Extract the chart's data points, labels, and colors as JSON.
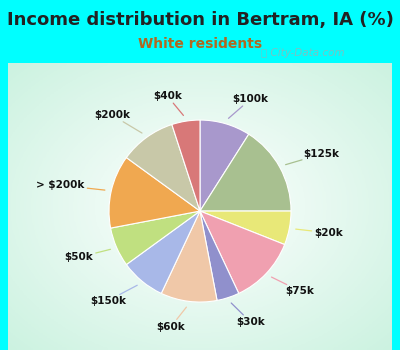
{
  "title": "Income distribution in Bertram, IA (%)",
  "subtitle": "White residents",
  "watermark": "Ⓢ City-Data.com",
  "background_outer": "#00FFFF",
  "labels": [
    "$100k",
    "$125k",
    "$20k",
    "$75k",
    "$30k",
    "$60k",
    "$150k",
    "$50k",
    "> $200k",
    "$200k",
    "$40k"
  ],
  "sizes": [
    9,
    16,
    6,
    12,
    4,
    10,
    8,
    7,
    13,
    10,
    5
  ],
  "colors": [
    "#a898cc",
    "#a8c090",
    "#e8e878",
    "#f0a0b0",
    "#9090cc",
    "#f0c8a8",
    "#a8b8e8",
    "#c0e080",
    "#f0a850",
    "#c8c8a8",
    "#d87878"
  ],
  "title_fontsize": 13,
  "subtitle_fontsize": 10,
  "label_fontsize": 7.5,
  "figsize": [
    4.0,
    3.5
  ],
  "dpi": 100
}
